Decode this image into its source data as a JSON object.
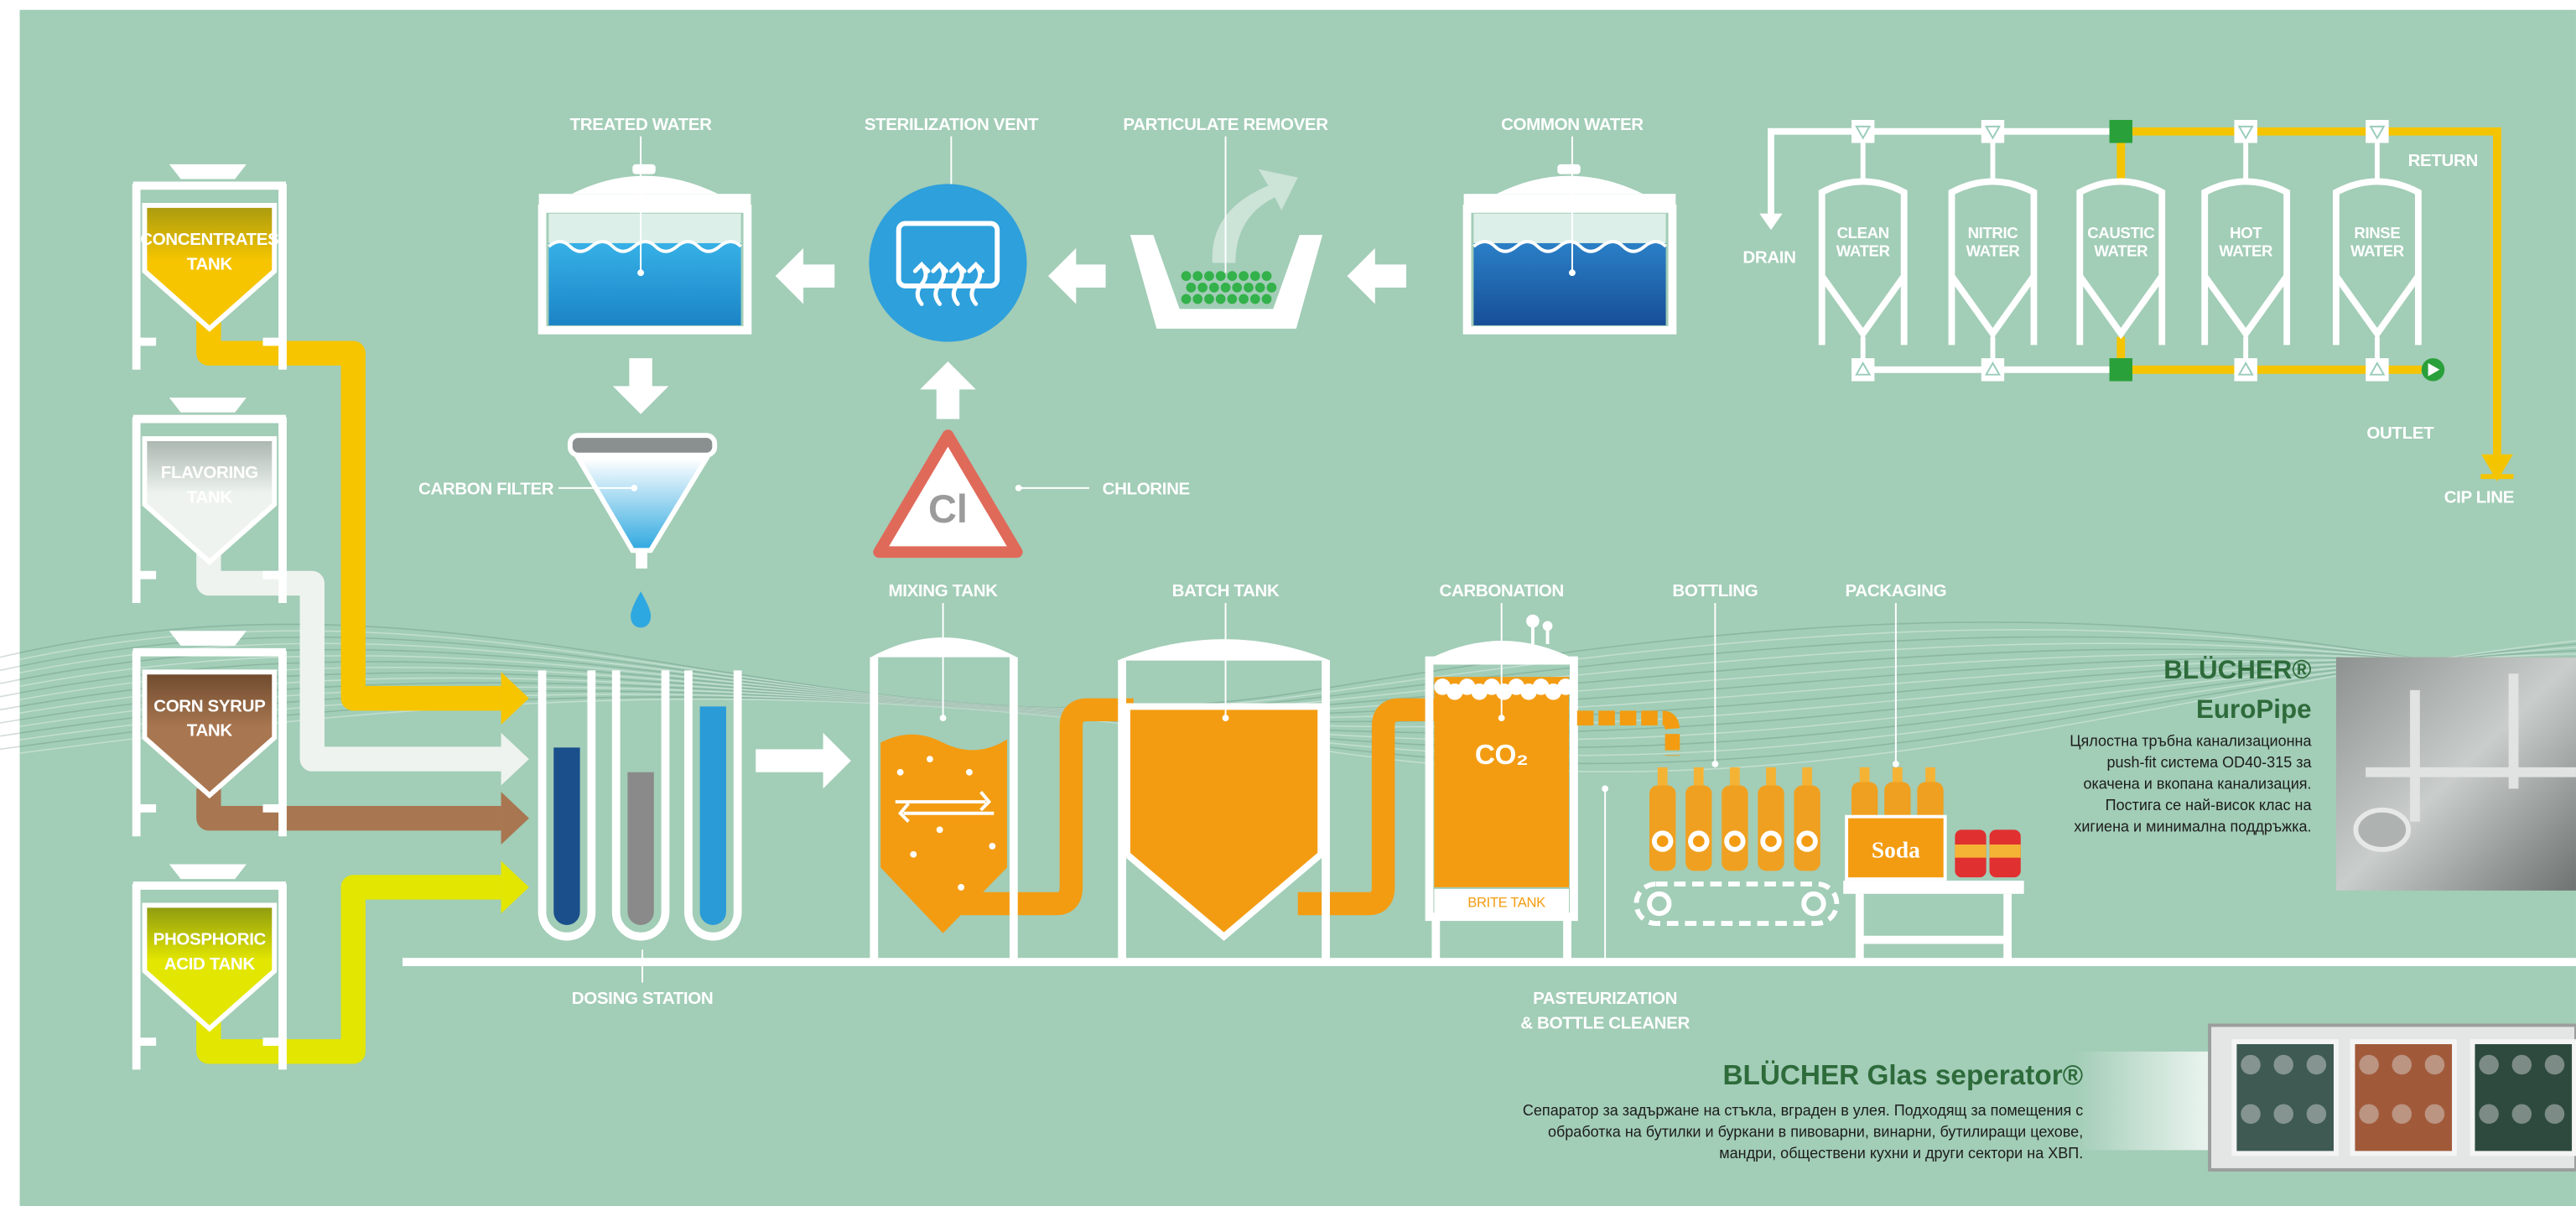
{
  "tanks": [
    {
      "label": [
        "CONCENTRATES",
        "TANK"
      ]
    },
    {
      "label": [
        "FLAVORING",
        "TANK"
      ]
    },
    {
      "label": [
        "CORN SYRUP",
        "TANK"
      ]
    },
    {
      "label": [
        "PHOSPHORIC",
        "ACID TANK"
      ]
    }
  ],
  "water_treatment": {
    "treated_water": "TREATED WATER",
    "sterilization_vent": "STERILIZATION VENT",
    "particulate_remover": "PARTICULATE REMOVER",
    "common_water": "COMMON WATER",
    "carbon_filter": "CARBON FILTER",
    "chlorine": "CHLORINE",
    "chlorine_symbol": "Cl"
  },
  "production": {
    "mixing_tank": "MIXING TANK",
    "batch_tank": "BATCH TANK",
    "carbonation": "CARBONATION",
    "co2": "CO₂",
    "brite_tank": "BRITE TANK",
    "bottling": "BOTTLING",
    "packaging": "PACKAGING",
    "soda": "Soda",
    "dosing_station": "DOSING STATION",
    "pasteurization": [
      "PASTEURIZATION",
      "& BOTTLE CLEANER"
    ]
  },
  "cip": {
    "tanks": [
      [
        "CLEAN",
        "WATER"
      ],
      [
        "NITRIC",
        "WATER"
      ],
      [
        "CAUSTIC",
        "WATER"
      ],
      [
        "HOT",
        "WATER"
      ],
      [
        "RINSE",
        "WATER"
      ]
    ],
    "drain": "DRAIN",
    "return": "RETURN",
    "outlet": "OUTLET",
    "cip_line": "CIP LINE"
  },
  "ads": [
    {
      "brand": "BLÜCHER®",
      "product": "EuroPipe",
      "description": [
        "Цялостна тръбна канализационна",
        "push-fit система OD40-315 за",
        "окачена и вкопана канализация.",
        "Постига се най-висок клас на",
        "хигиена и минимална поддръжка."
      ]
    },
    {
      "title": "BLÜCHER Glas seperator®",
      "description": [
        "Сепаратор за задържане на стъкла, вграден в улея. Подходящ за помещения с",
        "обработка на бутилки и буркани в пивоварни, винарни, бутилиращи цехове,",
        "мандри, обществени кухни и други сектори на ХВП."
      ]
    }
  ]
}
